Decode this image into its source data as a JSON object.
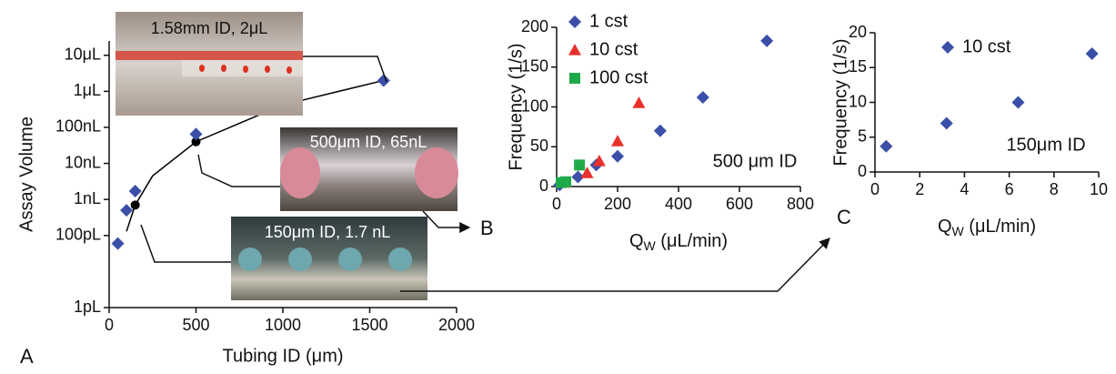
{
  "chart_data": [
    {
      "type": "scatter",
      "panel_label": "A",
      "y_label": "Assay Volume",
      "x_label": "Tubing ID  (μm)",
      "xlim": [
        0,
        2000
      ],
      "xticks": [
        0,
        500,
        1000,
        1500,
        2000
      ],
      "log_y": true,
      "ylim": [
        1,
        25000000
      ],
      "yticks": [
        {
          "value": 1,
          "label": "1pL"
        },
        {
          "value": 100,
          "label": "100pL"
        },
        {
          "value": 1000,
          "label": "1nL"
        },
        {
          "value": 10000,
          "label": "10nL"
        },
        {
          "value": 100000,
          "label": "100nL"
        },
        {
          "value": 1000000,
          "label": "1μL"
        },
        {
          "value": 10000000,
          "label": "10μL"
        }
      ],
      "series": [
        {
          "color": "#000000",
          "marker": "none",
          "line": true,
          "x": [
            100,
            150,
            250,
            500,
            1000,
            1580
          ],
          "values": [
            130,
            700,
            4500,
            40000,
            420000,
            2000000
          ]
        },
        {
          "color": "#000000",
          "marker": "circle",
          "x": [
            150,
            500,
            1580
          ],
          "values": [
            700,
            40000,
            2000000
          ]
        },
        {
          "color": "#3b4fa8",
          "marker": "diamond",
          "x": [
            50,
            100,
            150,
            500,
            1580
          ],
          "values": [
            60,
            500,
            1700,
            65000,
            2000000
          ]
        }
      ],
      "photo_labels": [
        "1.58mm ID, 2μL",
        "500μm ID, 65nL",
        "150μm ID, 1.7 nL"
      ]
    },
    {
      "type": "scatter",
      "panel_label": "B",
      "y_label": "Frequency (1/s)",
      "x_label": [
        "Q",
        "W",
        " (μL/min)"
      ],
      "xlim": [
        0,
        800
      ],
      "xticks": [
        0,
        200,
        400,
        600,
        800
      ],
      "ylim": [
        0,
        200
      ],
      "yticks": [
        0,
        50,
        100,
        150,
        200
      ],
      "annotation": "500 μm ID",
      "series": [
        {
          "name": "1 cst",
          "color": "#3b4fa8",
          "marker": "diamond",
          "x": [
            10,
            70,
            130,
            200,
            340,
            480,
            690
          ],
          "values": [
            2,
            12,
            27,
            38,
            70,
            112,
            183
          ]
        },
        {
          "name": "10 cst",
          "color": "#e8302a",
          "marker": "triangle",
          "x": [
            25,
            100,
            140,
            200,
            270
          ],
          "values": [
            5,
            17,
            32,
            57,
            105
          ]
        },
        {
          "name": "100 cst",
          "color": "#1faa4a",
          "marker": "square",
          "x": [
            15,
            30,
            75
          ],
          "values": [
            5,
            6,
            27
          ]
        }
      ]
    },
    {
      "type": "scatter",
      "panel_label": "C",
      "y_label": "Frequency (1/s)",
      "x_label": [
        "Q",
        "W",
        " (μL/min)"
      ],
      "xlim": [
        0,
        10
      ],
      "xticks": [
        0,
        2,
        4,
        6,
        8,
        10
      ],
      "ylim": [
        0,
        20
      ],
      "yticks": [
        0,
        5,
        10,
        15,
        20
      ],
      "annotation": "150μm ID",
      "series": [
        {
          "name": "10 cst",
          "color": "#3b4fa8",
          "marker": "diamond",
          "x": [
            0.5,
            3.2,
            6.4,
            9.7
          ],
          "values": [
            3.7,
            7,
            10,
            17
          ]
        }
      ]
    }
  ]
}
